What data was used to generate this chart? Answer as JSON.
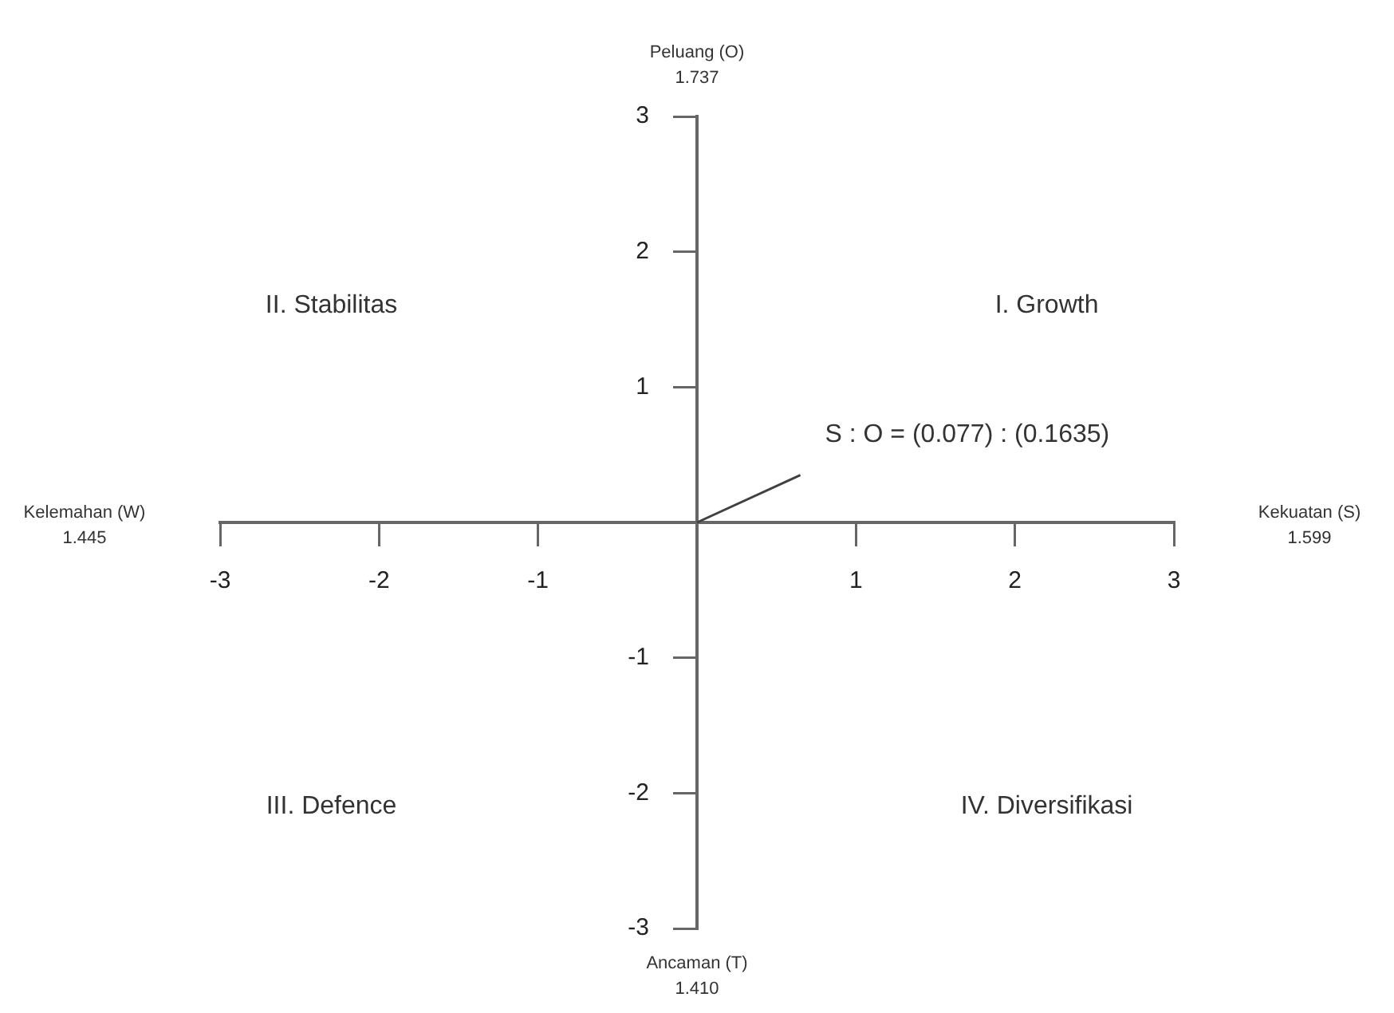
{
  "chart_data": {
    "type": "line",
    "x": [
      0,
      0.65
    ],
    "values": [
      0,
      0.35
    ],
    "color": "#404040",
    "xlim": [
      -3,
      3
    ],
    "ylim": [
      -3,
      3
    ],
    "xticks": [
      -3,
      -2,
      -1,
      1,
      2,
      3
    ],
    "yticks": [
      3,
      2,
      1,
      -1,
      -2,
      -3
    ],
    "grid": false,
    "legend": false,
    "marker": "none",
    "line_style": "solid",
    "annotations": [
      "Peluang (O)\n1.737",
      "Kekuatan (S)\n1.599",
      "Ancaman (T)\n1.410",
      "Kelemahan (W)\n1.445",
      "I. Growth",
      "II. Stabilitas",
      "III. Defence",
      "IV. Diversifikasi",
      "S : O = (0.077) : (0.1635)"
    ]
  }
}
